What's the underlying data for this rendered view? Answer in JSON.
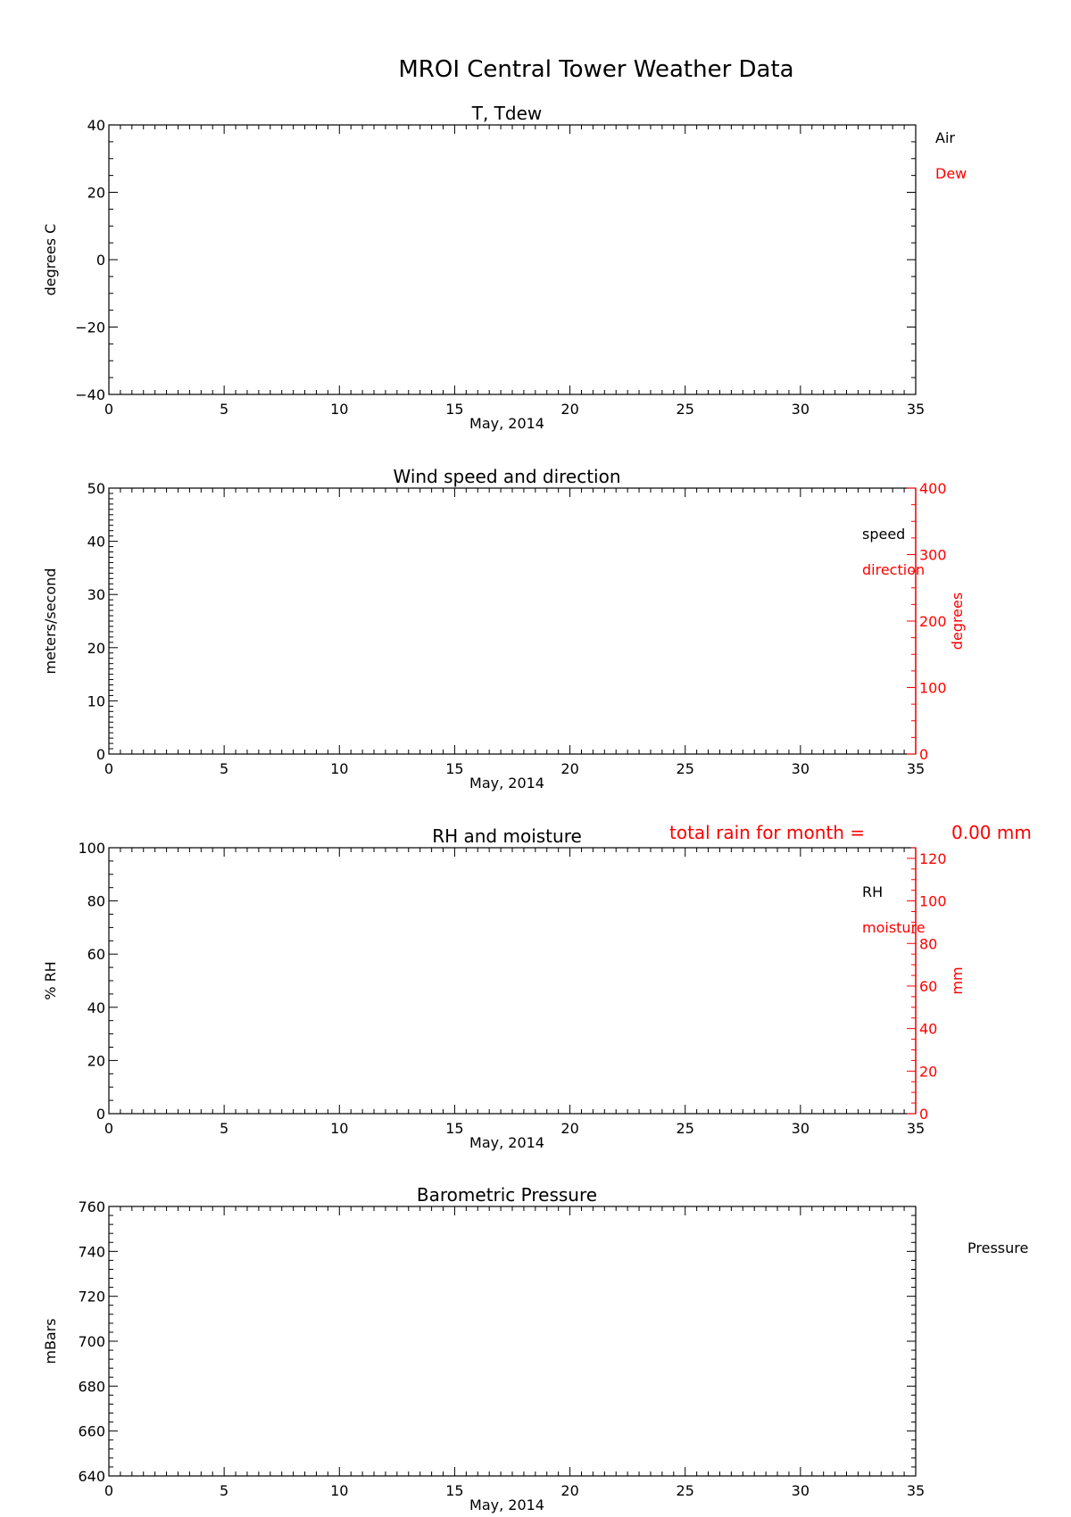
{
  "figure": {
    "title": "MROI Central Tower Weather Data"
  },
  "chart_data": [
    {
      "type": "line",
      "title": "T, Tdew",
      "xlabel": "May, 2014",
      "ylabel": "degrees C",
      "xlim": [
        0,
        35
      ],
      "ylim": [
        -40,
        40
      ],
      "x_ticks": [
        0,
        5,
        10,
        15,
        20,
        25,
        30,
        35
      ],
      "y_ticks": [
        -40,
        -20,
        0,
        20,
        40
      ],
      "grid": false,
      "legend_position": "right",
      "series": [
        {
          "name": "Air",
          "color": "#000000",
          "points": []
        },
        {
          "name": "Dew",
          "color": "#ff0000",
          "points": []
        }
      ]
    },
    {
      "type": "line",
      "title": "Wind speed and direction",
      "xlabel": "May, 2014",
      "ylabel": "meters/second",
      "y2label": "degrees",
      "xlim": [
        0,
        35
      ],
      "ylim": [
        0,
        50
      ],
      "y2lim": [
        0,
        400
      ],
      "x_ticks": [
        0,
        5,
        10,
        15,
        20,
        25,
        30,
        35
      ],
      "y_ticks": [
        0,
        10,
        20,
        30,
        40,
        50
      ],
      "y2_ticks": [
        0,
        100,
        200,
        300,
        400
      ],
      "grid": false,
      "legend_position": "top-right",
      "series": [
        {
          "name": "speed",
          "color": "#000000",
          "axis": "left",
          "points": []
        },
        {
          "name": "direction",
          "color": "#ff0000",
          "axis": "right",
          "points": []
        }
      ]
    },
    {
      "type": "line",
      "title": "RH and moisture",
      "annotation": {
        "label": "total rain for month =",
        "value": "0.00 mm",
        "color": "#ff0000"
      },
      "xlabel": "May, 2014",
      "ylabel": "% RH",
      "y2label": "mm",
      "xlim": [
        0,
        35
      ],
      "ylim": [
        0,
        100
      ],
      "y2lim": [
        0,
        125
      ],
      "x_ticks": [
        0,
        5,
        10,
        15,
        20,
        25,
        30,
        35
      ],
      "y_ticks": [
        0,
        20,
        40,
        60,
        80,
        100
      ],
      "y2_ticks": [
        0,
        20,
        40,
        60,
        80,
        100,
        120
      ],
      "grid": false,
      "legend_position": "top-right",
      "series": [
        {
          "name": "RH",
          "color": "#000000",
          "axis": "left",
          "points": []
        },
        {
          "name": "moisture",
          "color": "#ff0000",
          "axis": "right",
          "points": []
        }
      ]
    },
    {
      "type": "line",
      "title": "Barometric Pressure",
      "xlabel": "May, 2014",
      "ylabel": "mBars",
      "xlim": [
        0,
        35
      ],
      "ylim": [
        640,
        760
      ],
      "x_ticks": [
        0,
        5,
        10,
        15,
        20,
        25,
        30,
        35
      ],
      "y_ticks": [
        640,
        660,
        680,
        700,
        720,
        740,
        760
      ],
      "grid": false,
      "legend_position": "right",
      "series": [
        {
          "name": "Pressure",
          "color": "#000000",
          "points": []
        }
      ]
    }
  ]
}
